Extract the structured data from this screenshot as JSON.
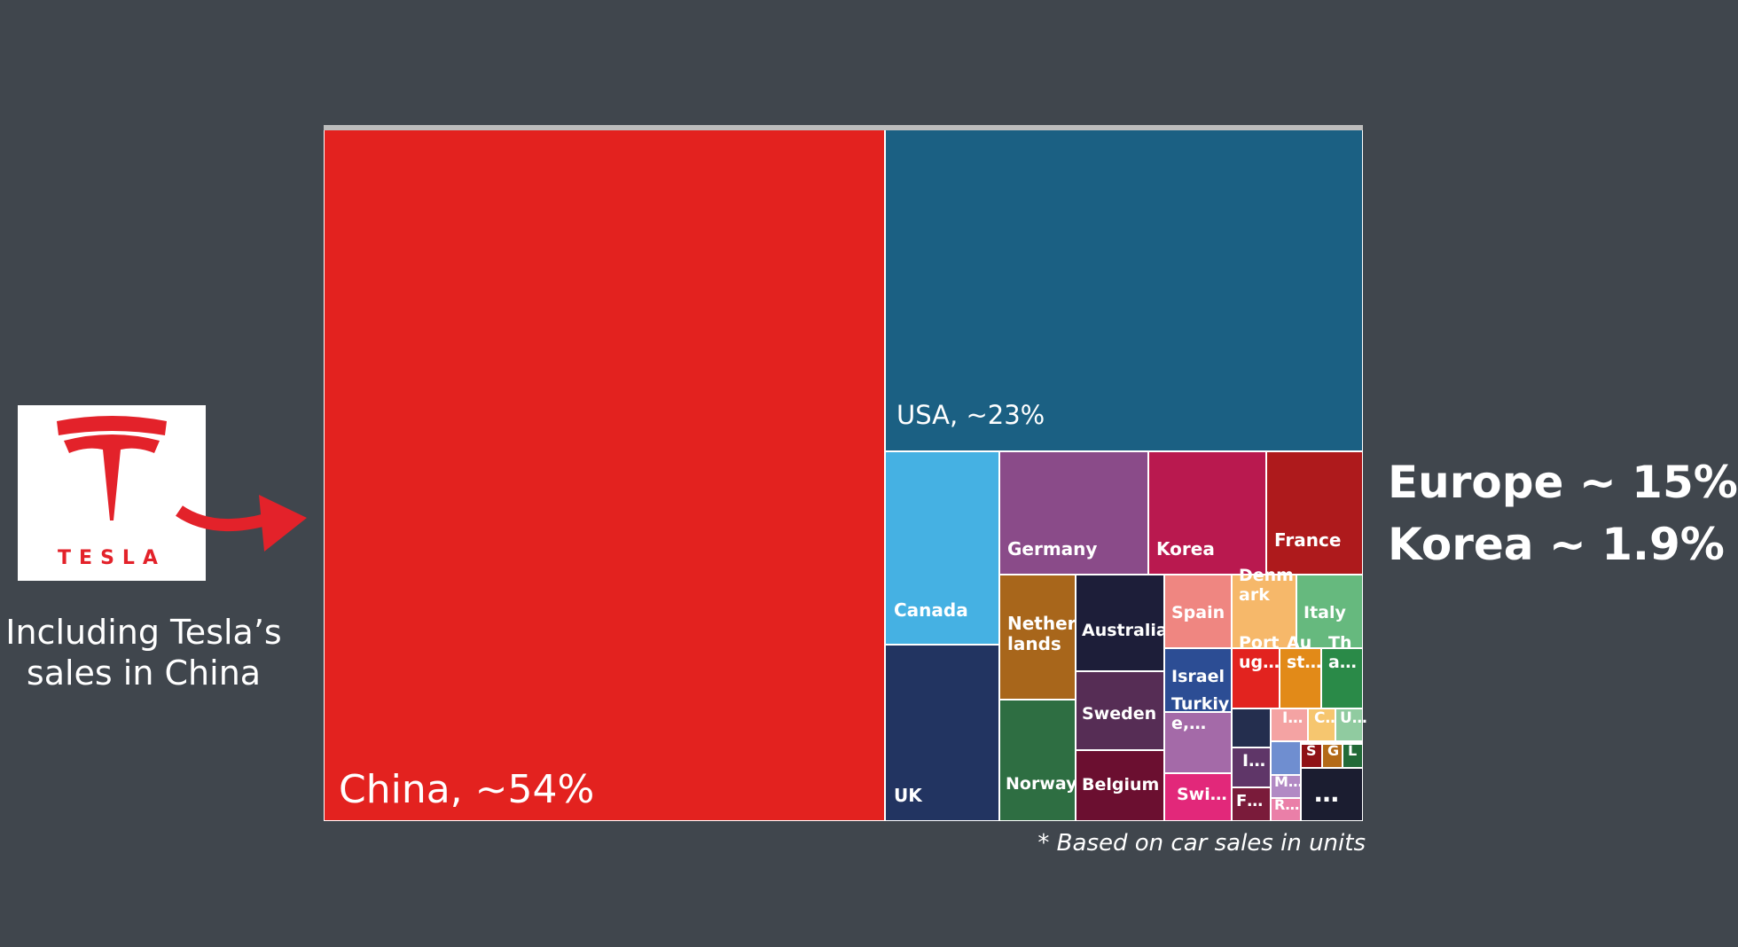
{
  "logo": {
    "wordmark": "TESLA",
    "brand_color": "#e3222a"
  },
  "caption": "Including Tesla’s sales in China",
  "note": "* Based on car sales in units",
  "stats": {
    "europe": "Europe ~ 15%",
    "korea": "Korea ~ 1.9%"
  },
  "chart_data": {
    "type": "treemap",
    "title": "",
    "series": [
      {
        "name": "China, ~54%",
        "value": 54,
        "color": "#e3221f"
      },
      {
        "name": "USA, ~23%",
        "value": 23,
        "color": "#1b6083"
      },
      {
        "name": "Canada",
        "color": "#45b1e3"
      },
      {
        "name": "UK",
        "color": "#223461"
      },
      {
        "name": "Germany",
        "color": "#8a4b89"
      },
      {
        "name": "Korea",
        "color": "#b9194f"
      },
      {
        "name": "France",
        "color": "#ae1a1c"
      },
      {
        "name": "Netherlands",
        "label": "Nether\nlands",
        "color": "#a8661b"
      },
      {
        "name": "Norway",
        "color": "#2e6e42"
      },
      {
        "name": "Australia",
        "color": "#1d1e39"
      },
      {
        "name": "Sweden",
        "color": "#562d55"
      },
      {
        "name": "Belgium",
        "color": "#6b0f30"
      },
      {
        "name": "Spain",
        "color": "#ef8681"
      },
      {
        "name": "Denmark",
        "label": "Denm\nark",
        "color": "#f6b86a"
      },
      {
        "name": "Italy",
        "color": "#66b97e"
      },
      {
        "name": "Israel",
        "color": "#2c4d94"
      },
      {
        "name": "Portugal",
        "label": "Port\nug…",
        "color": "#e2231f"
      },
      {
        "name": "Austria",
        "label": "Au\nst…",
        "color": "#e28a18"
      },
      {
        "name": "Thailand",
        "label": "Th\na…",
        "color": "#2a8a48"
      },
      {
        "name": "Turkiye",
        "label": "Turkiy\ne,…",
        "color": "#a46aa8"
      },
      {
        "name": "Switzerland",
        "label": "Swi…",
        "color": "#e2287a"
      },
      {
        "name": "I…",
        "label": "I…",
        "color": "#5f3668"
      },
      {
        "name": "F…",
        "label": "F…",
        "color": "#7a1b3a"
      },
      {
        "name": "I… (2)",
        "label": "I…",
        "color": "#f4a3a3"
      },
      {
        "name": "C…",
        "label": "C…",
        "color": "#f6c66f"
      },
      {
        "name": "U…",
        "label": "U…",
        "color": "#90cba0"
      },
      {
        "name": "S",
        "label": "S",
        "color": "#8f1216"
      },
      {
        "name": "G",
        "label": "G",
        "color": "#b36a18"
      },
      {
        "name": "L",
        "label": "L",
        "color": "#226a38"
      },
      {
        "name": "M…",
        "label": "M…",
        "color": "#b289c4"
      },
      {
        "name": "R…",
        "label": "R…",
        "color": "#ea7fa8"
      },
      {
        "name": "others",
        "label": "…",
        "color": "#1b1d30"
      },
      {
        "name": "",
        "label": "",
        "color": "#242e4e"
      },
      {
        "name": "",
        "label": "",
        "color": "#6f8ed0"
      }
    ]
  }
}
